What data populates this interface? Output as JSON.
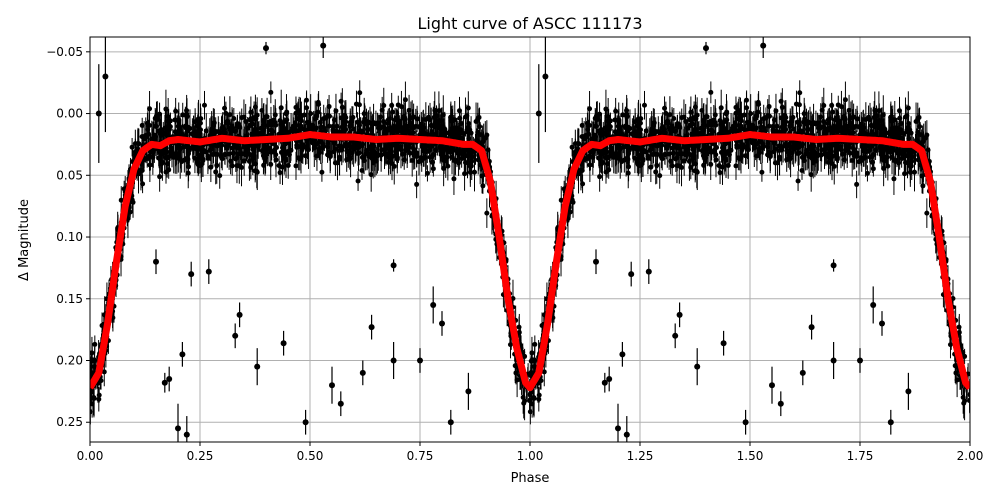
{
  "chart_data": {
    "type": "scatter",
    "title": "Light curve of ASCC 111173",
    "xlabel": "Phase",
    "ylabel": "Δ Magnitude",
    "xlim": [
      0.0,
      2.0
    ],
    "ylim": [
      0.266,
      -0.062
    ],
    "y_inverted": true,
    "grid": true,
    "xticks": [
      "0.00",
      "0.25",
      "0.50",
      "0.75",
      "1.00",
      "1.25",
      "1.50",
      "1.75",
      "2.00"
    ],
    "xtick_values": [
      0,
      0.25,
      0.5,
      0.75,
      1.0,
      1.25,
      1.5,
      1.75,
      2.0
    ],
    "yticks": [
      "−0.05",
      "0.00",
      "0.05",
      "0.10",
      "0.15",
      "0.20",
      "0.25"
    ],
    "ytick_values": [
      -0.05,
      0,
      0.05,
      0.1,
      0.15,
      0.2,
      0.25
    ],
    "colors": {
      "points": "#000000",
      "model": "#ff0000",
      "grid": "#b0b0b0"
    },
    "model_curve": {
      "phase": [
        0,
        0.02,
        0.04,
        0.06,
        0.08,
        0.1,
        0.12,
        0.14,
        0.16,
        0.18,
        0.2,
        0.25,
        0.3,
        0.35,
        0.4,
        0.45,
        0.5,
        0.55,
        0.6,
        0.65,
        0.7,
        0.75,
        0.8,
        0.85,
        0.87,
        0.89,
        0.91,
        0.93,
        0.95,
        0.97,
        0.99,
        1.0
      ],
      "mag": [
        0.222,
        0.21,
        0.17,
        0.12,
        0.075,
        0.045,
        0.03,
        0.025,
        0.026,
        0.022,
        0.021,
        0.023,
        0.02,
        0.022,
        0.021,
        0.02,
        0.017,
        0.019,
        0.019,
        0.021,
        0.02,
        0.021,
        0.022,
        0.025,
        0.025,
        0.03,
        0.055,
        0.1,
        0.15,
        0.19,
        0.218,
        0.222
      ]
    },
    "outliers": [
      {
        "phase": 0.02,
        "mag": 0.0,
        "err": 0.04
      },
      {
        "phase": 0.035,
        "mag": -0.03,
        "err": 0.045
      },
      {
        "phase": 0.4,
        "mag": -0.053,
        "err": 0.005
      },
      {
        "phase": 0.53,
        "mag": -0.055,
        "err": 0.01
      },
      {
        "phase": 0.17,
        "mag": 0.218,
        "err": 0.008
      },
      {
        "phase": 0.18,
        "mag": 0.215,
        "err": 0.01
      },
      {
        "phase": 0.2,
        "mag": 0.255,
        "err": 0.02
      },
      {
        "phase": 0.22,
        "mag": 0.26,
        "err": 0.015
      },
      {
        "phase": 0.21,
        "mag": 0.195,
        "err": 0.01
      },
      {
        "phase": 0.33,
        "mag": 0.18,
        "err": 0.01
      },
      {
        "phase": 0.34,
        "mag": 0.163,
        "err": 0.01
      },
      {
        "phase": 0.38,
        "mag": 0.205,
        "err": 0.015
      },
      {
        "phase": 0.44,
        "mag": 0.186,
        "err": 0.01
      },
      {
        "phase": 0.49,
        "mag": 0.25,
        "err": 0.01
      },
      {
        "phase": 0.55,
        "mag": 0.22,
        "err": 0.015
      },
      {
        "phase": 0.57,
        "mag": 0.235,
        "err": 0.01
      },
      {
        "phase": 0.62,
        "mag": 0.21,
        "err": 0.01
      },
      {
        "phase": 0.64,
        "mag": 0.173,
        "err": 0.01
      },
      {
        "phase": 0.69,
        "mag": 0.2,
        "err": 0.015
      },
      {
        "phase": 0.75,
        "mag": 0.2,
        "err": 0.01
      },
      {
        "phase": 0.78,
        "mag": 0.155,
        "err": 0.015
      },
      {
        "phase": 0.82,
        "mag": 0.25,
        "err": 0.01
      },
      {
        "phase": 0.86,
        "mag": 0.225,
        "err": 0.015
      },
      {
        "phase": 0.27,
        "mag": 0.128,
        "err": 0.01
      },
      {
        "phase": 0.23,
        "mag": 0.13,
        "err": 0.01
      },
      {
        "phase": 0.15,
        "mag": 0.12,
        "err": 0.01
      },
      {
        "phase": 0.69,
        "mag": 0.123,
        "err": 0.005
      },
      {
        "phase": 0.8,
        "mag": 0.17,
        "err": 0.01
      }
    ]
  }
}
